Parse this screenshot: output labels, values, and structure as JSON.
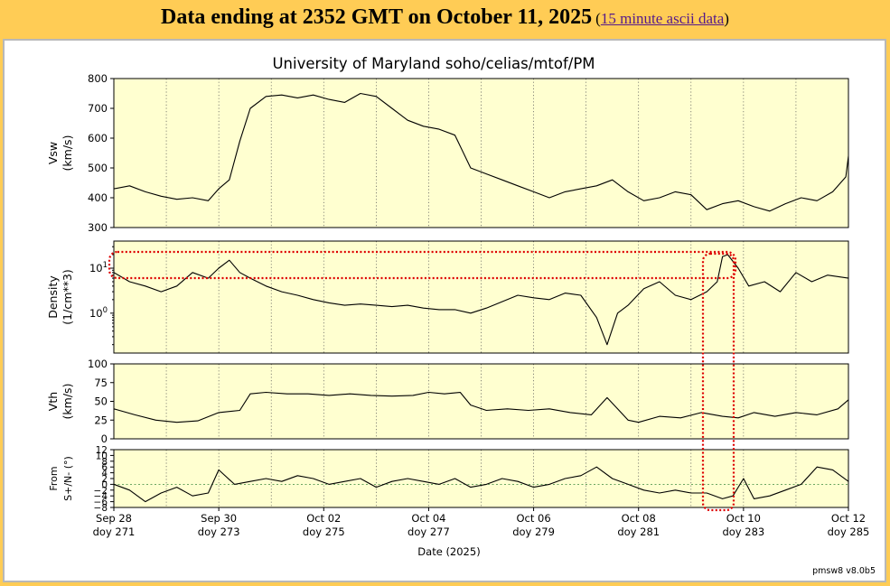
{
  "header": {
    "title": "Data ending at 2352 GMT on October 11, 2025",
    "link_open": "(",
    "link_text": "15 minute ascii data",
    "link_close": ")"
  },
  "footer": {
    "version": "pmsw8 v8.0b5"
  },
  "colors": {
    "plot_bg": "#ffffd0",
    "page_bg": "#ffcc55",
    "line": "#000000",
    "highlight": "#dd0000"
  },
  "chart_data": {
    "type": "line",
    "title": "University of Maryland  soho/celias/mtof/PM",
    "xlabel": "Date (2025)",
    "xlim": [
      271,
      285
    ],
    "x_ticks": [
      {
        "x": 271,
        "label1": "Sep 28",
        "label2": "doy 271"
      },
      {
        "x": 273,
        "label1": "Sep 30",
        "label2": "doy 273"
      },
      {
        "x": 275,
        "label1": "Oct 02",
        "label2": "doy 275"
      },
      {
        "x": 277,
        "label1": "Oct 04",
        "label2": "doy 277"
      },
      {
        "x": 279,
        "label1": "Oct 06",
        "label2": "doy 279"
      },
      {
        "x": 281,
        "label1": "Oct 08",
        "label2": "doy 281"
      },
      {
        "x": 283,
        "label1": "Oct 10",
        "label2": "doy 283"
      },
      {
        "x": 285,
        "label1": "Oct 12",
        "label2": "doy 285"
      }
    ],
    "grid": "vertical dotted, every day",
    "panels": [
      {
        "name": "Vsw",
        "ylabel_lines": [
          "Vsw",
          "(km/s)"
        ],
        "scale": "linear",
        "ylim": [
          300,
          800
        ],
        "yticks": [
          300,
          400,
          500,
          600,
          700,
          800
        ],
        "ytick_labels": [
          "300",
          "400",
          "500",
          "600",
          "700",
          "800"
        ],
        "x": [
          271,
          271.3,
          271.6,
          271.9,
          272.2,
          272.5,
          272.8,
          273.0,
          273.2,
          273.4,
          273.6,
          273.9,
          274.2,
          274.5,
          274.8,
          275.1,
          275.4,
          275.7,
          276.0,
          276.3,
          276.6,
          276.9,
          277.2,
          277.5,
          277.8,
          278.1,
          278.4,
          278.7,
          279.0,
          279.3,
          279.6,
          279.9,
          280.2,
          280.5,
          280.8,
          281.1,
          281.4,
          281.7,
          282.0,
          282.3,
          282.6,
          282.9,
          283.2,
          283.5,
          283.8,
          284.1,
          284.4,
          284.7,
          284.95,
          285.0
        ],
        "y": [
          430,
          440,
          420,
          405,
          395,
          400,
          390,
          430,
          460,
          590,
          700,
          740,
          745,
          735,
          745,
          730,
          720,
          750,
          740,
          700,
          660,
          640,
          630,
          610,
          500,
          480,
          460,
          440,
          420,
          400,
          420,
          430,
          440,
          460,
          420,
          390,
          400,
          420,
          410,
          360,
          380,
          390,
          370,
          355,
          380,
          400,
          390,
          420,
          470,
          540
        ]
      },
      {
        "name": "Density",
        "ylabel_lines": [
          "Density",
          "(1/cm**3)"
        ],
        "scale": "log",
        "ylim": [
          0.13,
          40
        ],
        "ytick_labels": [
          "10^0",
          "10^1"
        ],
        "x": [
          271,
          271.3,
          271.6,
          271.9,
          272.2,
          272.5,
          272.8,
          273.0,
          273.2,
          273.4,
          273.6,
          273.9,
          274.2,
          274.5,
          274.8,
          275.1,
          275.4,
          275.7,
          276.0,
          276.3,
          276.6,
          276.9,
          277.2,
          277.5,
          277.8,
          278.1,
          278.4,
          278.7,
          279.0,
          279.3,
          279.6,
          279.9,
          280.2,
          280.4,
          280.6,
          280.8,
          281.1,
          281.4,
          281.7,
          282.0,
          282.3,
          282.5,
          282.6,
          282.7,
          282.9,
          283.1,
          283.4,
          283.7,
          284.0,
          284.3,
          284.6,
          285.0
        ],
        "y": [
          8,
          5,
          4,
          3,
          4,
          8,
          6,
          10,
          15,
          8,
          6,
          4,
          3,
          2.5,
          2,
          1.7,
          1.5,
          1.6,
          1.5,
          1.4,
          1.5,
          1.3,
          1.2,
          1.2,
          1.0,
          1.3,
          1.8,
          2.5,
          2.2,
          2.0,
          2.8,
          2.5,
          0.8,
          0.2,
          1.0,
          1.5,
          3.5,
          5,
          2.5,
          2.0,
          3.0,
          5.0,
          18,
          20,
          10,
          4,
          5,
          3,
          8,
          5,
          7,
          6
        ]
      },
      {
        "name": "Vth",
        "ylabel_lines": [
          "Vth",
          "(km/s)"
        ],
        "scale": "linear",
        "ylim": [
          0,
          100
        ],
        "yticks": [
          0,
          25,
          50,
          75,
          100
        ],
        "ytick_labels": [
          "0",
          "25",
          "50",
          "75",
          "100"
        ],
        "x": [
          271,
          271.4,
          271.8,
          272.2,
          272.6,
          273.0,
          273.4,
          273.6,
          273.9,
          274.3,
          274.7,
          275.1,
          275.5,
          275.9,
          276.3,
          276.7,
          277.0,
          277.3,
          277.6,
          277.8,
          278.1,
          278.5,
          278.9,
          279.3,
          279.7,
          280.1,
          280.4,
          280.6,
          280.8,
          281.0,
          281.4,
          281.8,
          282.2,
          282.6,
          282.9,
          283.2,
          283.6,
          284.0,
          284.4,
          284.8,
          285.0
        ],
        "y": [
          40,
          32,
          25,
          22,
          24,
          35,
          38,
          60,
          62,
          60,
          60,
          58,
          60,
          58,
          57,
          58,
          62,
          60,
          62,
          45,
          38,
          40,
          38,
          40,
          35,
          32,
          55,
          40,
          25,
          22,
          30,
          28,
          35,
          30,
          28,
          35,
          30,
          35,
          32,
          40,
          52
        ]
      },
      {
        "name": "From S+/N- (°)",
        "ylabel_lines": [
          "From",
          "S+/N- (°)"
        ],
        "scale": "linear",
        "ylim": [
          -8,
          12
        ],
        "yticks": [
          -8,
          -6,
          -4,
          -2,
          0,
          2,
          4,
          6,
          8,
          10,
          12
        ],
        "ytick_labels": [
          "−8",
          "−6",
          "−4",
          "−2",
          "0",
          "2",
          "4",
          "6",
          "8",
          "10",
          "12"
        ],
        "x": [
          271,
          271.3,
          271.6,
          271.9,
          272.2,
          272.5,
          272.8,
          273.0,
          273.3,
          273.6,
          273.9,
          274.2,
          274.5,
          274.8,
          275.1,
          275.4,
          275.7,
          276.0,
          276.3,
          276.6,
          276.9,
          277.2,
          277.5,
          277.8,
          278.1,
          278.4,
          278.7,
          279.0,
          279.3,
          279.6,
          279.9,
          280.2,
          280.5,
          280.8,
          281.1,
          281.4,
          281.7,
          282.0,
          282.3,
          282.6,
          282.8,
          283.0,
          283.2,
          283.5,
          283.8,
          284.1,
          284.4,
          284.7,
          285.0
        ],
        "y": [
          0,
          -2,
          -6,
          -3,
          -1,
          -4,
          -3,
          5,
          0,
          1,
          2,
          1,
          3,
          2,
          0,
          1,
          2,
          -1,
          1,
          2,
          1,
          0,
          2,
          -1,
          0,
          2,
          1,
          -1,
          0,
          2,
          3,
          6,
          2,
          0,
          -2,
          -3,
          -2,
          -3,
          -3,
          -5,
          -4,
          2,
          -5,
          -4,
          -2,
          0,
          6,
          5,
          1
        ]
      }
    ],
    "annotations": [
      {
        "type": "dotted-box",
        "color": "#dd0000",
        "desc": "around density peak near doy 282.6-282.8, extending down to bottom panel"
      },
      {
        "type": "dotted-line",
        "color": "#dd0000",
        "desc": "horizontal band at density peak level across panel"
      }
    ]
  }
}
